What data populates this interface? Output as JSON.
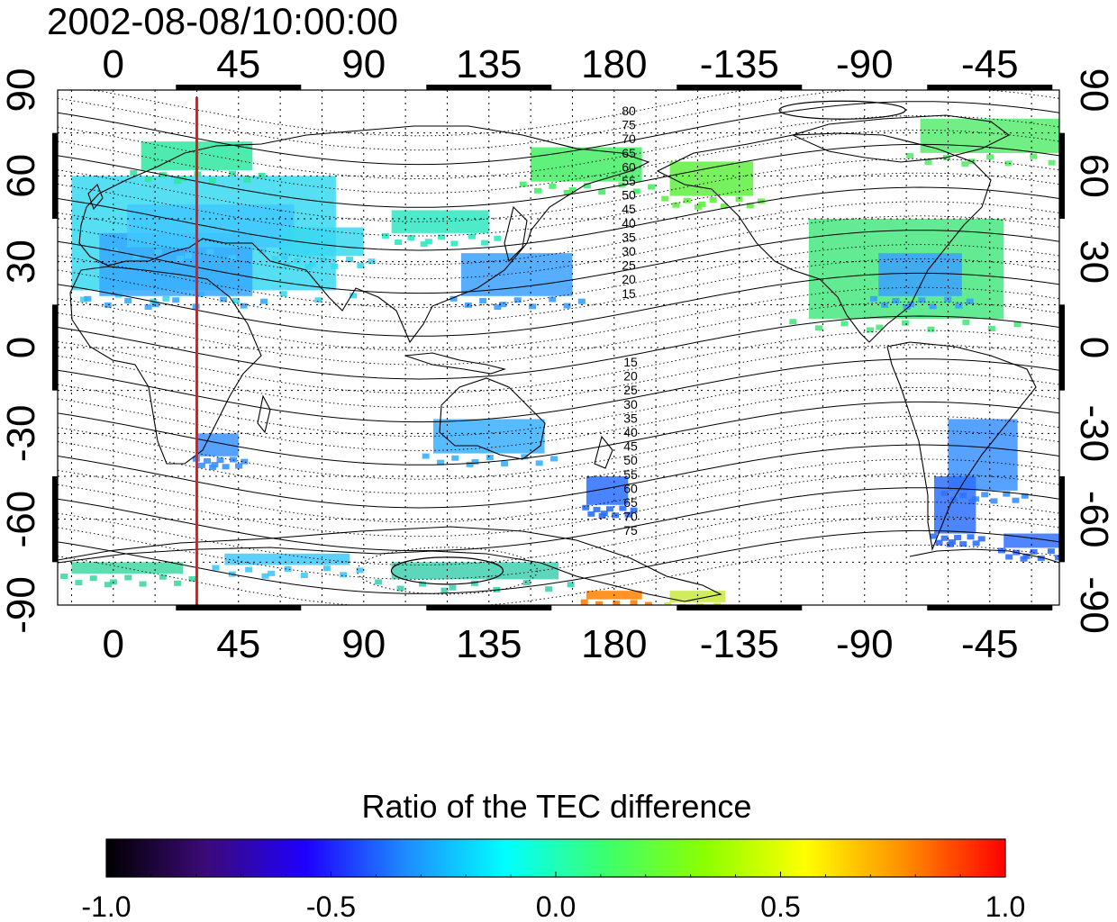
{
  "title": "2002-08-08/10:00:00",
  "map": {
    "lon_ticks_top": [
      "0",
      "45",
      "90",
      "135",
      "180",
      "-135",
      "-90",
      "-45"
    ],
    "lon_ticks_bottom": [
      "0",
      "45",
      "90",
      "135",
      "180",
      "-135",
      "-90",
      "-45"
    ],
    "lat_ticks_left": [
      "90",
      "60",
      "30",
      "0",
      "-30",
      "-60",
      "-90"
    ],
    "lat_ticks_right": [
      "90",
      "60",
      "30",
      "0",
      "-30",
      "-60",
      "-90"
    ],
    "lon_tick_values": [
      0,
      45,
      90,
      135,
      180,
      225,
      270,
      315
    ],
    "lat_tick_values": [
      90,
      60,
      30,
      0,
      -30,
      -60,
      -90
    ],
    "lon_range": [
      -20,
      340
    ],
    "lat_range": [
      -90,
      90
    ],
    "grid": true,
    "marker_line_lon": 30,
    "marker_line_color": "#e21a1a",
    "contour_labels_north": [
      "80",
      "75",
      "70",
      "65",
      "60",
      "55",
      "50",
      "45",
      "40",
      "35",
      "30",
      "25",
      "20",
      "15"
    ],
    "contour_labels_south": [
      "15",
      "20",
      "25",
      "30",
      "35",
      "40",
      "45",
      "50",
      "55",
      "60",
      "65",
      "70",
      "75"
    ]
  },
  "colorbar": {
    "title": "Ratio of the TEC difference",
    "tick_labels": [
      "-1.0",
      "-0.5",
      "0.0",
      "0.5",
      "1.0"
    ],
    "tick_values": [
      -1.0,
      -0.5,
      0.0,
      0.5,
      1.0
    ],
    "colors": [
      "#000000",
      "#3c0a78",
      "#1e00ff",
      "#1e8cff",
      "#00ffff",
      "#3cff6e",
      "#8cff00",
      "#ffff00",
      "#ff8c00",
      "#ff0000"
    ]
  },
  "data_patches": [
    {
      "lon": -15,
      "lat": 60,
      "w": 95,
      "h": 40,
      "c": "#38d8f0"
    },
    {
      "lon": -5,
      "lat": 40,
      "w": 55,
      "h": 22,
      "c": "#36a8ff"
    },
    {
      "lon": 10,
      "lat": 72,
      "w": 40,
      "h": 10,
      "c": "#2ee8a0"
    },
    {
      "lon": 5,
      "lat": 50,
      "w": 60,
      "h": 15,
      "c": "#40c8ff"
    },
    {
      "lon": 60,
      "lat": 42,
      "w": 30,
      "h": 10,
      "c": "#38d8f0"
    },
    {
      "lon": 100,
      "lat": 48,
      "w": 35,
      "h": 8,
      "c": "#2ee8c0"
    },
    {
      "lon": 125,
      "lat": 33,
      "w": 40,
      "h": 15,
      "c": "#3aa0ff"
    },
    {
      "lon": 150,
      "lat": 70,
      "w": 40,
      "h": 12,
      "c": "#44ee66"
    },
    {
      "lon": 200,
      "lat": 65,
      "w": 30,
      "h": 12,
      "c": "#60f040"
    },
    {
      "lon": 250,
      "lat": 45,
      "w": 70,
      "h": 35,
      "c": "#48e880"
    },
    {
      "lon": 275,
      "lat": 33,
      "w": 30,
      "h": 15,
      "c": "#3aa0ff"
    },
    {
      "lon": 290,
      "lat": 80,
      "w": 50,
      "h": 12,
      "c": "#58ec70"
    },
    {
      "lon": 300,
      "lat": -25,
      "w": 25,
      "h": 25,
      "c": "#3a90ff"
    },
    {
      "lon": 295,
      "lat": -45,
      "w": 15,
      "h": 20,
      "c": "#2e70ff"
    },
    {
      "lon": 30,
      "lat": -30,
      "w": 15,
      "h": 8,
      "c": "#3a90ff"
    },
    {
      "lon": 115,
      "lat": -25,
      "w": 40,
      "h": 12,
      "c": "#3ab0ff"
    },
    {
      "lon": 170,
      "lat": -45,
      "w": 15,
      "h": 10,
      "c": "#2a70ff"
    },
    {
      "lon": 100,
      "lat": -75,
      "w": 60,
      "h": 6,
      "c": "#40d0b0"
    },
    {
      "lon": 170,
      "lat": -85,
      "w": 20,
      "h": 3,
      "c": "#ff8000"
    },
    {
      "lon": -15,
      "lat": -75,
      "w": 40,
      "h": 4,
      "c": "#40d8a0"
    },
    {
      "lon": 40,
      "lat": -72,
      "w": 45,
      "h": 4,
      "c": "#40c8ff"
    },
    {
      "lon": 320,
      "lat": -65,
      "w": 20,
      "h": 5,
      "c": "#3070ff"
    },
    {
      "lon": 200,
      "lat": -85,
      "w": 20,
      "h": 4,
      "c": "#c8e840"
    }
  ]
}
